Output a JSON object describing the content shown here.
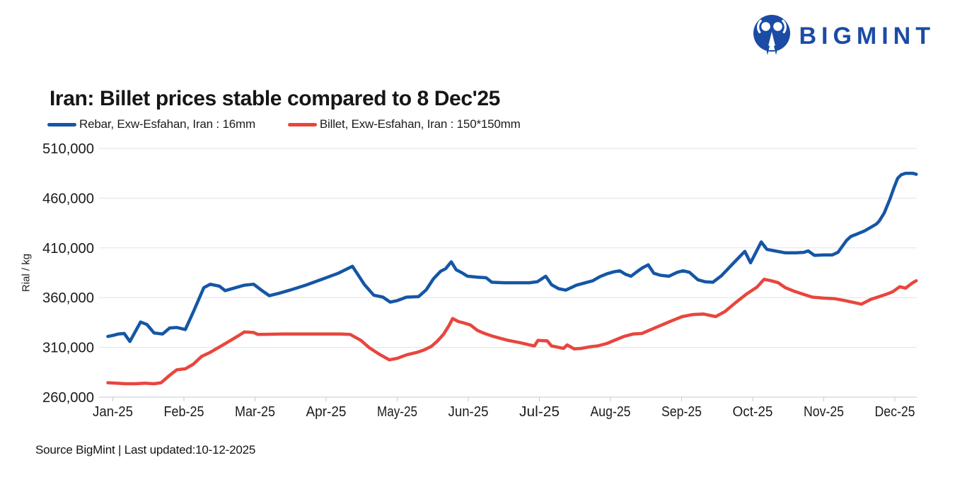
{
  "logo": {
    "text": "BIGMINT"
  },
  "source_note": "Source BigMint | Last updated:10-12-2025",
  "colors": {
    "brand": "#1b4ba5",
    "rebar_blue": "#1556a5",
    "billet_red": "#e8463d",
    "grid": "#e3e3e3",
    "axis": "#c6c9cc",
    "tick_text": "#1b1b1b"
  },
  "chart_data": {
    "type": "line",
    "title": "Iran: Billet prices stable compared to 8 Dec'25",
    "xlabel": "",
    "ylabel": "Rial / kg",
    "grid": "horizontal",
    "legend_position": "top-left",
    "x_axis": {
      "tick_labels": [
        "Jan-25",
        "Feb-25",
        "Mar-25",
        "Apr-25",
        "May-25",
        "Jun-25",
        "Jul-25",
        "Aug-25",
        "Sep-25",
        "Oct-25",
        "Nov-25",
        "Dec-25"
      ],
      "note_x_unit": "months since Jan-25"
    },
    "y_axis": {
      "range": [
        260000,
        510000
      ],
      "ticks": [
        260000,
        310000,
        360000,
        410000,
        460000,
        510000
      ],
      "tick_labels": [
        "260,000",
        "310,000",
        "360,000",
        "410,000",
        "460,000",
        "510,000"
      ]
    },
    "series": [
      {
        "key": "rebar",
        "name": "Rebar, Exw-Esfahan, Iran : 16mm",
        "color": "#1556a5",
        "unit": "Rial/kg",
        "points": [
          [
            -0.07,
            321000
          ],
          [
            0,
            322000
          ],
          [
            0.08,
            323500
          ],
          [
            0.16,
            324000
          ],
          [
            0.24,
            316000
          ],
          [
            0.39,
            335500
          ],
          [
            0.48,
            333000
          ],
          [
            0.58,
            324500
          ],
          [
            0.7,
            323500
          ],
          [
            0.8,
            329500
          ],
          [
            0.9,
            330000
          ],
          [
            1.02,
            328000
          ],
          [
            1.14,
            347000
          ],
          [
            1.28,
            370000
          ],
          [
            1.37,
            373500
          ],
          [
            1.5,
            371500
          ],
          [
            1.58,
            367000
          ],
          [
            1.7,
            369500
          ],
          [
            1.85,
            372500
          ],
          [
            1.98,
            373500
          ],
          [
            2.09,
            367500
          ],
          [
            2.2,
            362000
          ],
          [
            2.34,
            364500
          ],
          [
            2.49,
            367500
          ],
          [
            2.71,
            372500
          ],
          [
            2.94,
            378500
          ],
          [
            3.17,
            384500
          ],
          [
            3.37,
            391500
          ],
          [
            3.54,
            373000
          ],
          [
            3.67,
            362500
          ],
          [
            3.8,
            360500
          ],
          [
            3.9,
            355500
          ],
          [
            4,
            357000
          ],
          [
            4.13,
            360500
          ],
          [
            4.3,
            361000
          ],
          [
            4.41,
            368000
          ],
          [
            4.51,
            379000
          ],
          [
            4.61,
            386500
          ],
          [
            4.68,
            389000
          ],
          [
            4.76,
            396000
          ],
          [
            4.83,
            388000
          ],
          [
            4.91,
            385000
          ],
          [
            4.99,
            381500
          ],
          [
            5.13,
            380500
          ],
          [
            5.25,
            380000
          ],
          [
            5.33,
            375500
          ],
          [
            5.5,
            375000
          ],
          [
            5.86,
            375000
          ],
          [
            5.97,
            376000
          ],
          [
            6.09,
            381500
          ],
          [
            6.17,
            373000
          ],
          [
            6.27,
            369000
          ],
          [
            6.37,
            367500
          ],
          [
            6.52,
            372500
          ],
          [
            6.65,
            375000
          ],
          [
            6.75,
            377000
          ],
          [
            6.85,
            381000
          ],
          [
            6.95,
            384000
          ],
          [
            7.05,
            386000
          ],
          [
            7.13,
            387000
          ],
          [
            7.21,
            383500
          ],
          [
            7.29,
            381500
          ],
          [
            7.37,
            386000
          ],
          [
            7.45,
            390000
          ],
          [
            7.53,
            393000
          ],
          [
            7.61,
            384500
          ],
          [
            7.7,
            382500
          ],
          [
            7.82,
            381500
          ],
          [
            7.94,
            385500
          ],
          [
            8.02,
            387000
          ],
          [
            8.11,
            385500
          ],
          [
            8.23,
            378000
          ],
          [
            8.33,
            376000
          ],
          [
            8.44,
            375500
          ],
          [
            8.56,
            382000
          ],
          [
            8.68,
            391000
          ],
          [
            8.8,
            400000
          ],
          [
            8.89,
            406500
          ],
          [
            8.97,
            395000
          ],
          [
            9.12,
            416000
          ],
          [
            9.2,
            408500
          ],
          [
            9.31,
            407000
          ],
          [
            9.46,
            405000
          ],
          [
            9.61,
            405000
          ],
          [
            9.72,
            405500
          ],
          [
            9.78,
            407000
          ],
          [
            9.87,
            402500
          ],
          [
            10,
            403000
          ],
          [
            10.12,
            403000
          ],
          [
            10.2,
            405500
          ],
          [
            10.25,
            410500
          ],
          [
            10.32,
            417500
          ],
          [
            10.38,
            421500
          ],
          [
            10.47,
            424000
          ],
          [
            10.57,
            427000
          ],
          [
            10.67,
            431000
          ],
          [
            10.74,
            434000
          ],
          [
            10.78,
            437000
          ],
          [
            10.85,
            445000
          ],
          [
            10.93,
            459000
          ],
          [
            10.99,
            471000
          ],
          [
            11.04,
            480000
          ],
          [
            11.09,
            483500
          ],
          [
            11.15,
            485000
          ],
          [
            11.25,
            485000
          ],
          [
            11.3,
            484000
          ]
        ]
      },
      {
        "key": "billet",
        "name": "Billet, Exw-Esfahan, Iran : 150*150mm",
        "color": "#e8463d",
        "unit": "Rial/kg",
        "points": [
          [
            -0.07,
            274500
          ],
          [
            0.05,
            274000
          ],
          [
            0.18,
            273500
          ],
          [
            0.32,
            273500
          ],
          [
            0.45,
            274000
          ],
          [
            0.58,
            273500
          ],
          [
            0.68,
            274500
          ],
          [
            0.8,
            282000
          ],
          [
            0.9,
            287500
          ],
          [
            1.02,
            288500
          ],
          [
            1.13,
            293000
          ],
          [
            1.25,
            301000
          ],
          [
            1.37,
            305000
          ],
          [
            1.5,
            310500
          ],
          [
            1.62,
            315500
          ],
          [
            1.75,
            321000
          ],
          [
            1.85,
            325500
          ],
          [
            1.98,
            325000
          ],
          [
            2.04,
            323000
          ],
          [
            2.39,
            323500
          ],
          [
            2.79,
            323500
          ],
          [
            3.19,
            323500
          ],
          [
            3.34,
            323000
          ],
          [
            3.49,
            317000
          ],
          [
            3.61,
            309500
          ],
          [
            3.74,
            303500
          ],
          [
            3.89,
            297500
          ],
          [
            4,
            299000
          ],
          [
            4.13,
            302500
          ],
          [
            4.28,
            305000
          ],
          [
            4.38,
            307500
          ],
          [
            4.48,
            311000
          ],
          [
            4.56,
            316000
          ],
          [
            4.65,
            323000
          ],
          [
            4.72,
            331000
          ],
          [
            4.78,
            339000
          ],
          [
            4.86,
            336000
          ],
          [
            4.94,
            334500
          ],
          [
            5.03,
            332500
          ],
          [
            5.13,
            327000
          ],
          [
            5.23,
            324000
          ],
          [
            5.33,
            321500
          ],
          [
            5.43,
            319500
          ],
          [
            5.56,
            317000
          ],
          [
            5.71,
            315000
          ],
          [
            5.86,
            312500
          ],
          [
            5.93,
            311500
          ],
          [
            5.98,
            317000
          ],
          [
            6.11,
            316500
          ],
          [
            6.17,
            311500
          ],
          [
            6.27,
            310000
          ],
          [
            6.34,
            309000
          ],
          [
            6.39,
            312500
          ],
          [
            6.49,
            308500
          ],
          [
            6.59,
            309000
          ],
          [
            6.7,
            310500
          ],
          [
            6.82,
            311500
          ],
          [
            6.95,
            314000
          ],
          [
            7.07,
            317500
          ],
          [
            7.19,
            321000
          ],
          [
            7.32,
            323500
          ],
          [
            7.44,
            324000
          ],
          [
            7.57,
            328000
          ],
          [
            7.72,
            332500
          ],
          [
            7.87,
            337000
          ],
          [
            8.01,
            341000
          ],
          [
            8.16,
            343000
          ],
          [
            8.31,
            343500
          ],
          [
            8.48,
            341000
          ],
          [
            8.61,
            346000
          ],
          [
            8.76,
            355000
          ],
          [
            8.91,
            363500
          ],
          [
            9.06,
            370500
          ],
          [
            9.16,
            378500
          ],
          [
            9.26,
            377000
          ],
          [
            9.36,
            375000
          ],
          [
            9.46,
            370000
          ],
          [
            9.58,
            366500
          ],
          [
            9.71,
            363500
          ],
          [
            9.84,
            360500
          ],
          [
            10,
            359500
          ],
          [
            10.15,
            359000
          ],
          [
            10.3,
            357000
          ],
          [
            10.43,
            355000
          ],
          [
            10.53,
            353500
          ],
          [
            10.67,
            358500
          ],
          [
            10.78,
            361000
          ],
          [
            10.9,
            364000
          ],
          [
            10.97,
            366000
          ],
          [
            11.07,
            371000
          ],
          [
            11.15,
            369500
          ],
          [
            11.25,
            375000
          ],
          [
            11.3,
            377000
          ]
        ]
      }
    ]
  }
}
